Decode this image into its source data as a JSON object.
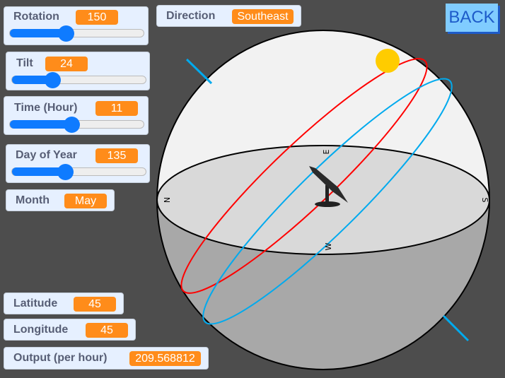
{
  "monitors": {
    "rotation": {
      "label": "Rotation",
      "value": "150",
      "min": 0,
      "max": 360
    },
    "tilt": {
      "label": "Tilt",
      "value": "24",
      "min": 0,
      "max": 80
    },
    "time": {
      "label": "Time (Hour)",
      "value": "11",
      "min": 0,
      "max": 24
    },
    "day": {
      "label": "Day of Year",
      "value": "135",
      "min": 1,
      "max": 340
    },
    "month": {
      "label": "Month",
      "value": "May"
    },
    "direction": {
      "label": "Direction",
      "value": "Southeast"
    },
    "latitude": {
      "label": "Latitude",
      "value": "45"
    },
    "longitude": {
      "label": "Longitude",
      "value": "45"
    },
    "output": {
      "label": "Output (per hour)",
      "value": "209.568812"
    }
  },
  "back_button": {
    "label": "BACK"
  },
  "compass": {
    "n": "N",
    "e": "E",
    "s": "S",
    "w": "W"
  },
  "colors": {
    "sun": "#ffcc00",
    "sun_path": "#ff0000",
    "equator_path": "#00aaee",
    "slider": "#0f7bff",
    "value_badge": "#ff8c1a"
  },
  "icons": {
    "sun": "sun-icon",
    "panel": "solar-panel-icon"
  }
}
